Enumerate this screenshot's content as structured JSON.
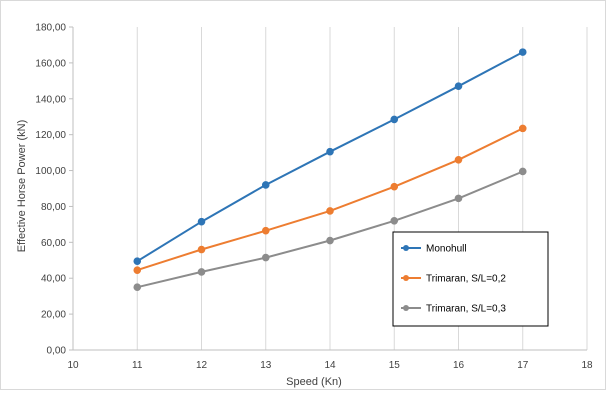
{
  "chart_data": {
    "type": "line",
    "title": "",
    "xlabel": "Speed (Kn)",
    "ylabel": "Effective Horse Power (kN)",
    "xlim": [
      10,
      18
    ],
    "ylim": [
      0,
      180
    ],
    "x_ticks": [
      "10",
      "11",
      "12",
      "13",
      "14",
      "15",
      "16",
      "17",
      "18"
    ],
    "y_ticks": [
      "0,00",
      "20,00",
      "40,00",
      "60,00",
      "80,00",
      "100,00",
      "120,00",
      "140,00",
      "160,00",
      "180,00"
    ],
    "grid": "vertical",
    "legend_position": "lower-right",
    "x": [
      11,
      12,
      13,
      14,
      15,
      16,
      17
    ],
    "series": [
      {
        "name": "Monohull",
        "color": "#2E75B6",
        "values": [
          49.5,
          71.5,
          92.0,
          110.5,
          128.5,
          147.0,
          166.0
        ]
      },
      {
        "name": "Trimaran, S/L=0,2",
        "color": "#ED7D31",
        "values": [
          44.5,
          56.0,
          66.5,
          77.5,
          91.0,
          106.0,
          123.5
        ]
      },
      {
        "name": "Trimaran, S/L=0,3",
        "color": "#8C8C8C",
        "values": [
          35.0,
          43.5,
          51.5,
          61.0,
          72.0,
          84.5,
          99.5
        ]
      }
    ]
  }
}
